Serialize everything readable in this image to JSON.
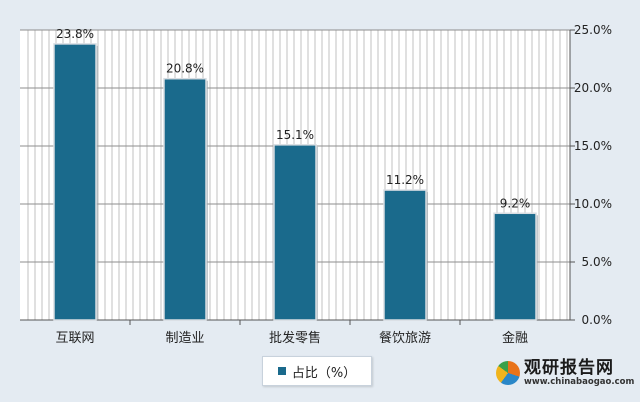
{
  "chart_data": {
    "type": "bar",
    "categories": [
      "互联网",
      "制造业",
      "批发零售",
      "餐饮旅游",
      "金融"
    ],
    "series": [
      {
        "name": "占比（%）",
        "values": [
          23.8,
          20.8,
          15.1,
          11.2,
          9.2
        ]
      }
    ],
    "data_labels": [
      "23.8%",
      "20.8%",
      "15.1%",
      "11.2%",
      "9.2%"
    ],
    "y_ticks": [
      "0.0%",
      "5.0%",
      "10.0%",
      "15.0%",
      "20.0%",
      "25.0%"
    ],
    "ylim": [
      0,
      25
    ],
    "y_axis_position": "right",
    "grid": true,
    "legend_position": "bottom",
    "title": "",
    "xlabel": "",
    "ylabel": ""
  },
  "colors": {
    "bar": "#1a6a8c",
    "plot_background": "#ffffff",
    "page_background": "#e4ebf2",
    "grid": "#8e8e8e"
  },
  "watermark": {
    "title": "观研报告网",
    "url": "www.chinabaogao.com"
  }
}
